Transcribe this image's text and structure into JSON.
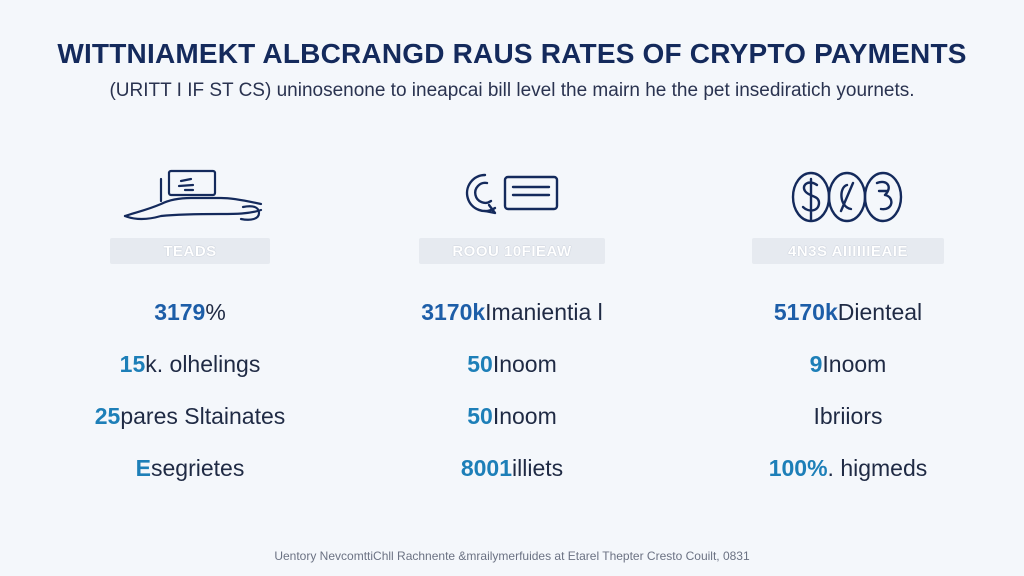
{
  "header": {
    "title": "WITTNIAMEKT ALBCRANGD RAUS RATES OF CRYPTO PAYMENTS",
    "subtitle": "(URITT I IF ST CS) uninosenone to ineapcai bill level the mairn he the pet insediratich yournets."
  },
  "columns": [
    {
      "icon": "hand-device-icon",
      "badge": "TEADS",
      "rows": [
        {
          "num": "3179",
          "text": "%"
        },
        {
          "num": "15",
          "text": "k. olhelings"
        },
        {
          "num": "25",
          "text": "pares Sltainates"
        },
        {
          "num": "E",
          "text": "segrietes"
        }
      ]
    },
    {
      "icon": "card-chip-icon",
      "badge": "ROOU 10FIEAW",
      "rows": [
        {
          "num": "3170k",
          "text": " Imanientia l"
        },
        {
          "num": "50",
          "text": " Inoom"
        },
        {
          "num": "50",
          "text": " Inoom"
        },
        {
          "num": "8001",
          "text": " illiets"
        }
      ]
    },
    {
      "icon": "coins-icon",
      "badge": "4N3S AIIIIIIEAIE",
      "rows": [
        {
          "num": "5170k",
          "text": " Dienteal"
        },
        {
          "num": "9",
          "text": " Inoom"
        },
        {
          "num": "",
          "text": "Ibriiors"
        },
        {
          "num": "100%",
          "text": ". higmeds"
        }
      ]
    }
  ],
  "footer": "Uentory NevcomttiChll Rachnente &mrailymerfuides at Etarel Thepter Cresto Couilt, 0831"
}
